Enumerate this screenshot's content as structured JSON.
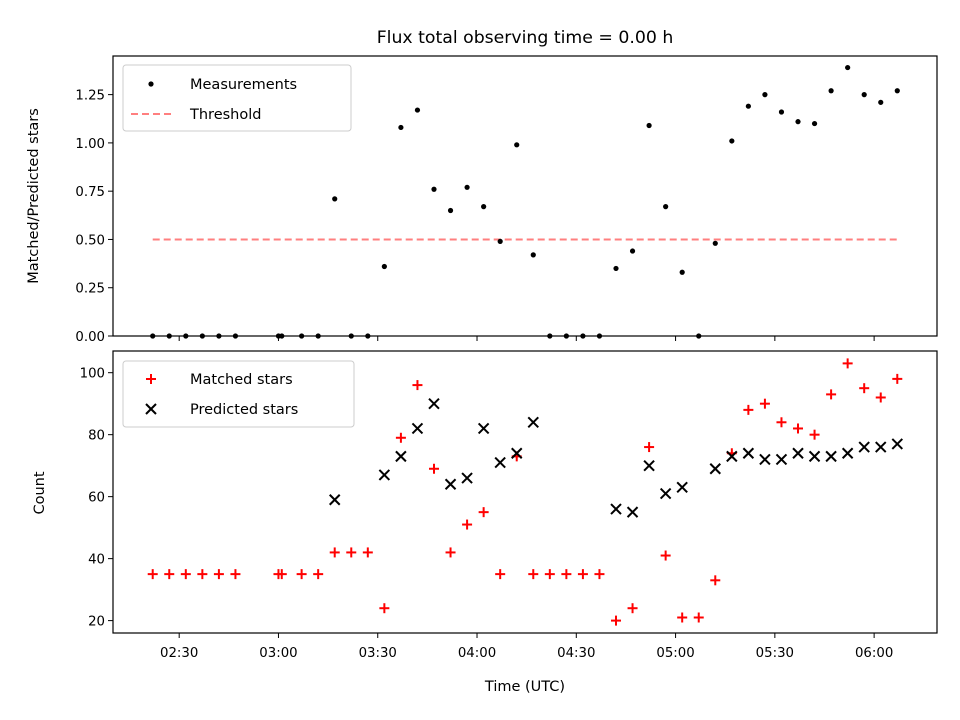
{
  "chart_data": [
    {
      "type": "scatter",
      "title": "Flux total observing time = 0.00 h",
      "xlabel": "",
      "ylabel": "Matched/Predicted stars",
      "ylim": [
        0,
        1.45
      ],
      "yticks": [
        "0.00",
        "0.25",
        "0.50",
        "0.75",
        "1.00",
        "1.25"
      ],
      "legend_position": "top-left",
      "series": [
        {
          "name": "Measurements",
          "marker": "dot",
          "color": "#000000",
          "points": [
            [
              "02:22",
              0.0
            ],
            [
              "02:27",
              0.0
            ],
            [
              "02:32",
              0.0
            ],
            [
              "02:37",
              0.0
            ],
            [
              "02:42",
              0.0
            ],
            [
              "02:47",
              0.0
            ],
            [
              "03:00",
              0.0
            ],
            [
              "03:01",
              0.0
            ],
            [
              "03:07",
              0.0
            ],
            [
              "03:12",
              0.0
            ],
            [
              "03:17",
              0.71
            ],
            [
              "03:22",
              0.0
            ],
            [
              "03:27",
              0.0
            ],
            [
              "03:32",
              0.36
            ],
            [
              "03:37",
              1.08
            ],
            [
              "03:42",
              1.17
            ],
            [
              "03:47",
              0.76
            ],
            [
              "03:52",
              0.65
            ],
            [
              "03:57",
              0.77
            ],
            [
              "04:02",
              0.67
            ],
            [
              "04:07",
              0.49
            ],
            [
              "04:12",
              0.99
            ],
            [
              "04:17",
              0.42
            ],
            [
              "04:22",
              0.0
            ],
            [
              "04:27",
              0.0
            ],
            [
              "04:32",
              0.0
            ],
            [
              "04:37",
              0.0
            ],
            [
              "04:42",
              0.35
            ],
            [
              "04:47",
              0.44
            ],
            [
              "04:52",
              1.09
            ],
            [
              "04:57",
              0.67
            ],
            [
              "05:02",
              0.33
            ],
            [
              "05:07",
              0.0
            ],
            [
              "05:12",
              0.48
            ],
            [
              "05:17",
              1.01
            ],
            [
              "05:22",
              1.19
            ],
            [
              "05:27",
              1.25
            ],
            [
              "05:32",
              1.16
            ],
            [
              "05:37",
              1.11
            ],
            [
              "05:42",
              1.1
            ],
            [
              "05:47",
              1.27
            ],
            [
              "05:52",
              1.39
            ],
            [
              "05:57",
              1.25
            ],
            [
              "06:02",
              1.21
            ],
            [
              "06:07",
              1.27
            ]
          ]
        },
        {
          "name": "Threshold",
          "marker": "dashed-line",
          "color": "#ff7f7f",
          "points": [
            [
              "02:22",
              0.5
            ],
            [
              "06:07",
              0.5
            ]
          ]
        }
      ]
    },
    {
      "type": "scatter",
      "title": "",
      "xlabel": "Time (UTC)",
      "ylabel": "Count",
      "ylim": [
        16,
        107
      ],
      "yticks": [
        "20",
        "40",
        "60",
        "80",
        "100"
      ],
      "xlim": [
        "02:10",
        "06:19"
      ],
      "xticks": [
        "02:30",
        "03:00",
        "03:30",
        "04:00",
        "04:30",
        "05:00",
        "05:30",
        "06:00"
      ],
      "legend_position": "top-left",
      "series": [
        {
          "name": "Matched stars",
          "marker": "plus",
          "color": "#ff0000",
          "points": [
            [
              "02:22",
              35
            ],
            [
              "02:27",
              35
            ],
            [
              "02:32",
              35
            ],
            [
              "02:37",
              35
            ],
            [
              "02:42",
              35
            ],
            [
              "02:47",
              35
            ],
            [
              "03:00",
              35
            ],
            [
              "03:01",
              35
            ],
            [
              "03:07",
              35
            ],
            [
              "03:12",
              35
            ],
            [
              "03:17",
              42
            ],
            [
              "03:22",
              42
            ],
            [
              "03:27",
              42
            ],
            [
              "03:32",
              24
            ],
            [
              "03:37",
              79
            ],
            [
              "03:42",
              96
            ],
            [
              "03:47",
              69
            ],
            [
              "03:52",
              42
            ],
            [
              "03:57",
              51
            ],
            [
              "04:02",
              55
            ],
            [
              "04:07",
              35
            ],
            [
              "04:12",
              73
            ],
            [
              "04:17",
              35
            ],
            [
              "04:22",
              35
            ],
            [
              "04:27",
              35
            ],
            [
              "04:32",
              35
            ],
            [
              "04:37",
              35
            ],
            [
              "04:42",
              20
            ],
            [
              "04:47",
              24
            ],
            [
              "04:52",
              76
            ],
            [
              "04:57",
              41
            ],
            [
              "05:02",
              21
            ],
            [
              "05:07",
              21
            ],
            [
              "05:12",
              33
            ],
            [
              "05:17",
              74
            ],
            [
              "05:22",
              88
            ],
            [
              "05:27",
              90
            ],
            [
              "05:32",
              84
            ],
            [
              "05:37",
              82
            ],
            [
              "05:42",
              80
            ],
            [
              "05:47",
              93
            ],
            [
              "05:52",
              103
            ],
            [
              "05:57",
              95
            ],
            [
              "06:02",
              92
            ],
            [
              "06:07",
              98
            ]
          ]
        },
        {
          "name": "Predicted stars",
          "marker": "x",
          "color": "#000000",
          "points": [
            [
              "03:17",
              59
            ],
            [
              "03:32",
              67
            ],
            [
              "03:37",
              73
            ],
            [
              "03:42",
              82
            ],
            [
              "03:47",
              90
            ],
            [
              "03:52",
              64
            ],
            [
              "03:57",
              66
            ],
            [
              "04:02",
              82
            ],
            [
              "04:07",
              71
            ],
            [
              "04:12",
              74
            ],
            [
              "04:17",
              84
            ],
            [
              "04:42",
              56
            ],
            [
              "04:47",
              55
            ],
            [
              "04:52",
              70
            ],
            [
              "04:57",
              61
            ],
            [
              "05:02",
              63
            ],
            [
              "05:12",
              69
            ],
            [
              "05:17",
              73
            ],
            [
              "05:22",
              74
            ],
            [
              "05:27",
              72
            ],
            [
              "05:32",
              72
            ],
            [
              "05:37",
              74
            ],
            [
              "05:42",
              73
            ],
            [
              "05:47",
              73
            ],
            [
              "05:52",
              74
            ],
            [
              "05:57",
              76
            ],
            [
              "06:02",
              76
            ],
            [
              "06:07",
              77
            ]
          ]
        }
      ]
    }
  ]
}
